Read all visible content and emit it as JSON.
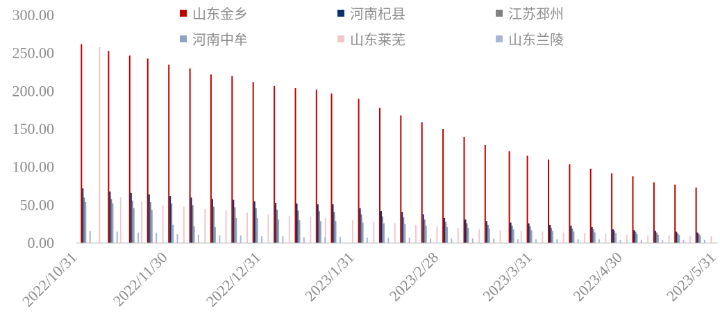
{
  "chart_data": {
    "type": "bar",
    "title": "",
    "xlabel": "",
    "ylabel": "",
    "ylim": [
      0,
      300
    ],
    "yticks": [
      "0.00",
      "50.00",
      "100.00",
      "150.00",
      "200.00",
      "250.00",
      "300.00"
    ],
    "xlim": [
      "2022-10-31",
      "2023-05-31"
    ],
    "xticks": [
      "2022/10/31",
      "2022/11/30",
      "2022/12/31",
      "2023/1/31",
      "2023/2/28",
      "2023/3/31",
      "2023/4/30",
      "2023/5/31"
    ],
    "legend_position": "top",
    "grid": false,
    "series": [
      {
        "name": "山东金乡",
        "color": "#c00000",
        "points": [
          [
            "2022-11-01",
            262
          ],
          [
            "2022-11-10",
            253
          ],
          [
            "2022-11-17",
            247
          ],
          [
            "2022-11-23",
            243
          ],
          [
            "2022-11-30",
            235
          ],
          [
            "2022-12-07",
            230
          ],
          [
            "2022-12-14",
            222
          ],
          [
            "2022-12-21",
            220
          ],
          [
            "2022-12-28",
            212
          ],
          [
            "2023-01-04",
            207
          ],
          [
            "2023-01-11",
            204
          ],
          [
            "2023-01-18",
            202
          ],
          [
            "2023-01-23",
            197
          ],
          [
            "2023-02-01",
            190
          ],
          [
            "2023-02-08",
            178
          ],
          [
            "2023-02-15",
            168
          ],
          [
            "2023-02-22",
            159
          ],
          [
            "2023-03-01",
            150
          ],
          [
            "2023-03-08",
            140
          ],
          [
            "2023-03-15",
            129
          ],
          [
            "2023-03-23",
            121
          ],
          [
            "2023-03-29",
            115
          ],
          [
            "2023-04-05",
            110
          ],
          [
            "2023-04-12",
            104
          ],
          [
            "2023-04-19",
            98
          ],
          [
            "2023-04-26",
            92
          ],
          [
            "2023-05-03",
            88
          ],
          [
            "2023-05-10",
            80
          ],
          [
            "2023-05-17",
            77
          ],
          [
            "2023-05-24",
            73
          ]
        ]
      },
      {
        "name": "河南杞县",
        "color": "#0d2f6e",
        "points": [
          [
            "2022-11-01",
            72
          ],
          [
            "2022-11-10",
            68
          ],
          [
            "2022-11-17",
            66
          ],
          [
            "2022-11-23",
            64
          ],
          [
            "2022-11-30",
            62
          ],
          [
            "2022-12-07",
            60
          ],
          [
            "2022-12-14",
            58
          ],
          [
            "2022-12-21",
            57
          ],
          [
            "2022-12-28",
            55
          ],
          [
            "2023-01-04",
            53
          ],
          [
            "2023-01-11",
            52
          ],
          [
            "2023-01-18",
            51
          ],
          [
            "2023-01-23",
            51
          ],
          [
            "2023-02-01",
            46
          ],
          [
            "2023-02-08",
            42
          ],
          [
            "2023-02-15",
            41
          ],
          [
            "2023-02-22",
            38
          ],
          [
            "2023-03-01",
            33
          ],
          [
            "2023-03-08",
            31
          ],
          [
            "2023-03-15",
            29
          ],
          [
            "2023-03-23",
            27
          ],
          [
            "2023-03-29",
            26
          ],
          [
            "2023-04-05",
            24
          ],
          [
            "2023-04-12",
            23
          ],
          [
            "2023-04-19",
            21
          ],
          [
            "2023-04-26",
            18
          ],
          [
            "2023-05-03",
            17
          ],
          [
            "2023-05-10",
            16
          ],
          [
            "2023-05-17",
            15
          ],
          [
            "2023-05-24",
            14
          ]
        ]
      },
      {
        "name": "江苏邳州",
        "color": "#808080",
        "points": [
          [
            "2022-11-01",
            60
          ],
          [
            "2022-11-10",
            58
          ],
          [
            "2022-11-17",
            56
          ],
          [
            "2022-11-23",
            54
          ],
          [
            "2022-11-30",
            52
          ],
          [
            "2022-12-07",
            50
          ],
          [
            "2022-12-14",
            48
          ],
          [
            "2022-12-21",
            47
          ],
          [
            "2022-12-28",
            46
          ],
          [
            "2023-01-04",
            44
          ],
          [
            "2023-01-11",
            43
          ],
          [
            "2023-01-18",
            42
          ],
          [
            "2023-01-23",
            41
          ],
          [
            "2023-02-01",
            38
          ],
          [
            "2023-02-08",
            35
          ],
          [
            "2023-02-15",
            34
          ],
          [
            "2023-02-22",
            31
          ],
          [
            "2023-03-01",
            28
          ],
          [
            "2023-03-08",
            26
          ],
          [
            "2023-03-15",
            24
          ],
          [
            "2023-03-23",
            23
          ],
          [
            "2023-03-29",
            22
          ],
          [
            "2023-04-05",
            20
          ],
          [
            "2023-04-12",
            19
          ],
          [
            "2023-04-19",
            18
          ],
          [
            "2023-04-26",
            16
          ],
          [
            "2023-05-03",
            15
          ],
          [
            "2023-05-10",
            14
          ],
          [
            "2023-05-17",
            13
          ],
          [
            "2023-05-24",
            12
          ]
        ]
      },
      {
        "name": "河南中牟",
        "color": "#8fa2c8",
        "points": [
          [
            "2022-11-01",
            54
          ],
          [
            "2022-11-10",
            52
          ],
          [
            "2022-11-17",
            46
          ],
          [
            "2022-11-23",
            44
          ],
          [
            "2022-11-30",
            24
          ],
          [
            "2022-12-07",
            22
          ],
          [
            "2022-12-14",
            21
          ],
          [
            "2022-12-21",
            33
          ],
          [
            "2022-12-28",
            33
          ],
          [
            "2023-01-04",
            31
          ],
          [
            "2023-01-11",
            30
          ],
          [
            "2023-01-18",
            29
          ],
          [
            "2023-01-23",
            29
          ],
          [
            "2023-02-01",
            27
          ],
          [
            "2023-02-08",
            26
          ],
          [
            "2023-02-15",
            25
          ],
          [
            "2023-02-22",
            23
          ],
          [
            "2023-03-01",
            21
          ],
          [
            "2023-03-08",
            20
          ],
          [
            "2023-03-15",
            19
          ],
          [
            "2023-03-23",
            18
          ],
          [
            "2023-03-29",
            17
          ],
          [
            "2023-04-05",
            16
          ],
          [
            "2023-04-12",
            15
          ],
          [
            "2023-04-19",
            14
          ],
          [
            "2023-04-26",
            13
          ],
          [
            "2023-05-03",
            12
          ],
          [
            "2023-05-10",
            11
          ],
          [
            "2023-05-17",
            11
          ],
          [
            "2023-05-24",
            10
          ]
        ]
      },
      {
        "name": "山东莱芜",
        "color": "#f0c8cc",
        "points": [
          [
            "2022-11-07",
            258
          ],
          [
            "2022-11-14",
            60
          ],
          [
            "2022-11-21",
            55
          ],
          [
            "2022-11-28",
            50
          ],
          [
            "2022-12-05",
            48
          ],
          [
            "2022-12-12",
            45
          ],
          [
            "2022-12-19",
            43
          ],
          [
            "2022-12-26",
            40
          ],
          [
            "2023-01-02",
            38
          ],
          [
            "2023-01-09",
            36
          ],
          [
            "2023-01-16",
            34
          ],
          [
            "2023-01-21",
            33
          ],
          [
            "2023-01-30",
            30
          ],
          [
            "2023-02-06",
            28
          ],
          [
            "2023-02-13",
            26
          ],
          [
            "2023-02-20",
            24
          ],
          [
            "2023-02-27",
            22
          ],
          [
            "2023-03-06",
            20
          ],
          [
            "2023-03-13",
            18
          ],
          [
            "2023-03-20",
            17
          ],
          [
            "2023-03-27",
            16
          ],
          [
            "2023-04-03",
            15
          ],
          [
            "2023-04-10",
            14
          ],
          [
            "2023-04-17",
            13
          ],
          [
            "2023-04-24",
            12
          ],
          [
            "2023-05-01",
            11
          ],
          [
            "2023-05-08",
            10
          ],
          [
            "2023-05-15",
            10
          ],
          [
            "2023-05-22",
            9
          ],
          [
            "2023-05-29",
            9
          ]
        ]
      },
      {
        "name": "山东兰陵",
        "color": "#a6b8d8",
        "points": [
          [
            "2022-11-02",
            16
          ],
          [
            "2022-11-11",
            15
          ],
          [
            "2022-11-18",
            14
          ],
          [
            "2022-11-24",
            13
          ],
          [
            "2022-12-01",
            12
          ],
          [
            "2022-12-08",
            11
          ],
          [
            "2022-12-15",
            10
          ],
          [
            "2022-12-22",
            10
          ],
          [
            "2022-12-29",
            9
          ],
          [
            "2023-01-05",
            9
          ],
          [
            "2023-01-12",
            8
          ],
          [
            "2023-01-19",
            8
          ],
          [
            "2023-01-24",
            8
          ],
          [
            "2023-02-02",
            7
          ],
          [
            "2023-02-09",
            7
          ],
          [
            "2023-02-16",
            7
          ],
          [
            "2023-02-23",
            6
          ],
          [
            "2023-03-02",
            6
          ],
          [
            "2023-03-09",
            6
          ],
          [
            "2023-03-16",
            6
          ],
          [
            "2023-03-24",
            5
          ],
          [
            "2023-03-30",
            5
          ],
          [
            "2023-04-06",
            5
          ],
          [
            "2023-04-13",
            5
          ],
          [
            "2023-04-20",
            5
          ],
          [
            "2023-04-27",
            4
          ],
          [
            "2023-05-04",
            4
          ],
          [
            "2023-05-11",
            4
          ],
          [
            "2023-05-18",
            4
          ],
          [
            "2023-05-25",
            4
          ]
        ]
      }
    ]
  }
}
